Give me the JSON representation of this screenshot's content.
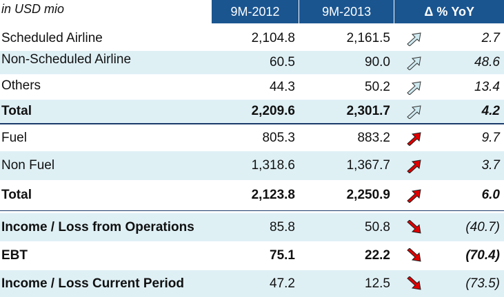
{
  "header": {
    "unit_label": "in USD mio",
    "col1": "9M-2012",
    "col2": "9M-2013",
    "col3": "Δ % YoY"
  },
  "rows": [
    {
      "label": "Scheduled Airline",
      "v2012": "2,104.8",
      "v2013": "2,161.5",
      "trend_icon": "arrow-up-right-outline-icon",
      "yoy": "2.7"
    },
    {
      "label": "Non-Scheduled Airline",
      "v2012": "60.5",
      "v2013": "90.0",
      "trend_icon": "arrow-up-right-outline-icon",
      "yoy": "48.6"
    },
    {
      "label": "Others",
      "v2012": "44.3",
      "v2013": "50.2",
      "trend_icon": "arrow-up-right-outline-icon",
      "yoy": "13.4"
    },
    {
      "label": "Total",
      "v2012": "2,209.6",
      "v2013": "2,301.7",
      "trend_icon": "arrow-up-right-outline-icon",
      "yoy": "4.2"
    },
    {
      "label": "Fuel",
      "v2012": "805.3",
      "v2013": "883.2",
      "trend_icon": "arrow-up-right-red-icon",
      "yoy": "9.7"
    },
    {
      "label": "Non Fuel",
      "v2012": "1,318.6",
      "v2013": "1,367.7",
      "trend_icon": "arrow-up-right-red-icon",
      "yoy": "3.7"
    },
    {
      "label": "Total",
      "v2012": "2,123.8",
      "v2013": "2,250.9",
      "trend_icon": "arrow-up-right-red-icon",
      "yoy": "6.0"
    },
    {
      "label": "Income / Loss from Operations",
      "v2012": "85.8",
      "v2013": "50.8",
      "trend_icon": "arrow-down-right-red-icon",
      "yoy": "(40.7)"
    },
    {
      "label": "EBT",
      "v2012": "75.1",
      "v2013": "22.2",
      "trend_icon": "arrow-down-right-red-icon",
      "yoy": "(70.4)"
    },
    {
      "label": "Income / Loss Current Period",
      "v2012": "47.2",
      "v2013": "12.5",
      "trend_icon": "arrow-down-right-red-icon",
      "yoy": "(73.5)"
    }
  ],
  "colors": {
    "header_bg": "#1a5590",
    "row_shade": "#dff0f5",
    "arrow_outline_fill": "#cfeaf0",
    "arrow_red": "#e00000"
  }
}
